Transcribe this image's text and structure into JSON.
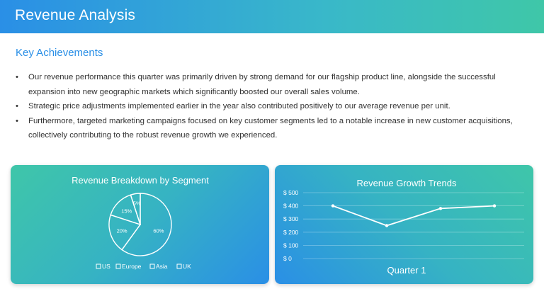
{
  "header": {
    "title": "Revenue Analysis"
  },
  "section": {
    "title": "Key Achievements"
  },
  "bullets": [
    "Our revenue performance this quarter was primarily driven by strong demand for our flagship product line, alongside the successful expansion into new geographic markets which significantly boosted our overall sales volume.",
    "Strategic price adjustments implemented earlier in the year also contributed positively to our average revenue per unit.",
    "Furthermore, targeted marketing campaigns focused on key customer segments led to a notable increase in new customer acquisitions, collectively contributing to the robust revenue growth we experienced."
  ],
  "colors": {
    "header_start": "#2a8fe6",
    "header_end": "#3fc7a8",
    "accent": "#2a8fe6",
    "chart_stroke": "#ffffff"
  },
  "chart_data": [
    {
      "type": "pie",
      "title": "Revenue Breakdown by Segment",
      "labels": [
        "US",
        "Europe",
        "Asia",
        "UK"
      ],
      "values": [
        60,
        20,
        15,
        5
      ],
      "value_labels": [
        "60%",
        "20%",
        "15%",
        "5%"
      ],
      "legend": "bottom"
    },
    {
      "type": "line",
      "title": "Revenue Growth Trends",
      "xlabel": "Quarter 1",
      "x": [
        1,
        2,
        3,
        4
      ],
      "series": [
        {
          "values": [
            400,
            250,
            380,
            400
          ]
        }
      ],
      "ylim": [
        0,
        500
      ],
      "yticks": [
        0,
        100,
        200,
        300,
        400,
        500
      ],
      "ytick_labels": [
        "$ 0",
        "$ 100",
        "$ 200",
        "$ 300",
        "$ 400",
        "$ 500"
      ],
      "grid": true
    }
  ]
}
